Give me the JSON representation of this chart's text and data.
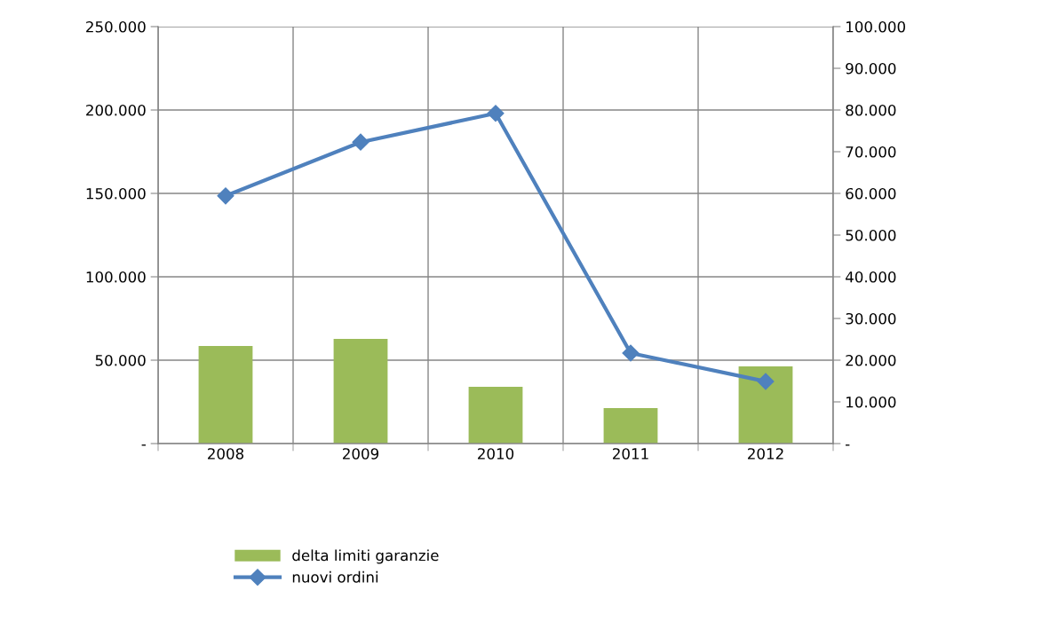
{
  "chart_data": {
    "type": "bar",
    "categories": [
      "2008",
      "2009",
      "2010",
      "2011",
      "2012"
    ],
    "series": [
      {
        "name": "delta limiti garanzie",
        "color": "#9bbb59",
        "values": [
          58500,
          62800,
          34000,
          21300,
          46300
        ]
      },
      {
        "name": "nuovi ordini",
        "type": "line",
        "axis": "y2",
        "color": "#4f81bd",
        "marker": "diamond",
        "values": [
          59400,
          72300,
          79200,
          21700,
          14900
        ]
      }
    ],
    "ylim": [
      0,
      250000
    ],
    "yticks": [
      {
        "value": 0,
        "label": "-"
      },
      {
        "value": 50000,
        "label": "50.000"
      },
      {
        "value": 100000,
        "label": "100.000"
      },
      {
        "value": 150000,
        "label": "150.000"
      },
      {
        "value": 200000,
        "label": "200.000"
      },
      {
        "value": 250000,
        "label": "250.000"
      }
    ],
    "y2lim": [
      0,
      100000
    ],
    "y2ticks": [
      {
        "value": 0,
        "label": "-"
      },
      {
        "value": 10000,
        "label": "10.000"
      },
      {
        "value": 20000,
        "label": "20.000"
      },
      {
        "value": 30000,
        "label": "30.000"
      },
      {
        "value": 40000,
        "label": "40.000"
      },
      {
        "value": 50000,
        "label": "50.000"
      },
      {
        "value": 60000,
        "label": "60.000"
      },
      {
        "value": 70000,
        "label": "70.000"
      },
      {
        "value": 80000,
        "label": "80.000"
      },
      {
        "value": 90000,
        "label": "90.000"
      },
      {
        "value": 100000,
        "label": "100.000"
      }
    ],
    "grid": true,
    "legend": "bottom left"
  }
}
